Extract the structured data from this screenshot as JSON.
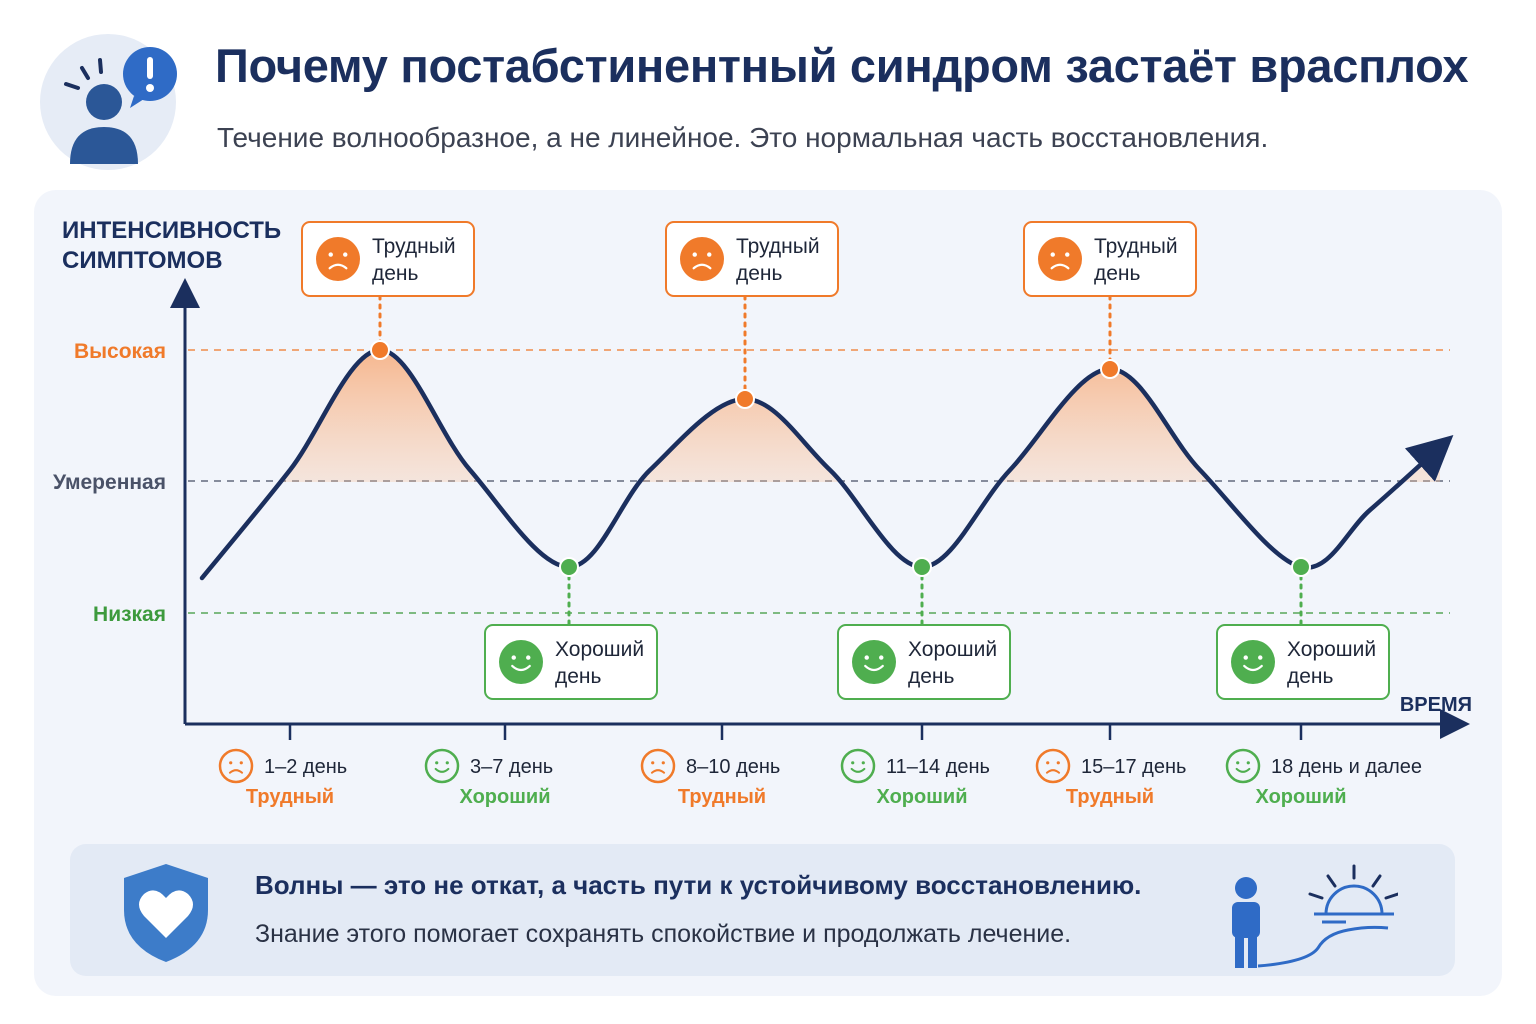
{
  "header": {
    "title": "Почему постабстинентный синдром застаёт врасплох",
    "subtitle": "Течение волнообразное, а не линейное. Это нормальная часть восстановления.",
    "icon": "person-alert-icon"
  },
  "chart_data": {
    "type": "line",
    "ylabel": [
      "ИНТЕНСИВНОСТЬ",
      "СИМПТОМОВ"
    ],
    "xlabel": "ВРЕМЯ",
    "levels": [
      {
        "label": "Высокая",
        "color": "#f07a2a"
      },
      {
        "label": "Умеренная",
        "color": "#4a5268"
      },
      {
        "label": "Низкая",
        "color": "#3d9a3d"
      }
    ],
    "phases": [
      {
        "range": "1–2 день",
        "state": "Трудный",
        "kind": "hard"
      },
      {
        "range": "3–7 день",
        "state": "Хороший",
        "kind": "good"
      },
      {
        "range": "8–10 день",
        "state": "Трудный",
        "kind": "hard"
      },
      {
        "range": "11–14 день",
        "state": "Хороший",
        "kind": "good"
      },
      {
        "range": "15–17 день",
        "state": "Трудный",
        "kind": "hard"
      },
      {
        "range": "18 день и далее",
        "state": "Хороший",
        "kind": "good"
      }
    ],
    "callouts": {
      "hard": [
        "Трудный",
        "день"
      ],
      "good": [
        "Хороший",
        "день"
      ]
    },
    "colors": {
      "hard": "#f07a2a",
      "good": "#4fae4f",
      "curve": "#1b2f5e",
      "axis": "#1b2f5e"
    },
    "grid": false,
    "legend": "none"
  },
  "footer": {
    "title": "Волны — это не откат, а часть пути к устойчивому восстановлению.",
    "text": "Знание этого помогает сохранять спокойствие и продолжать лечение.",
    "left_icon": "shield-heart-icon",
    "right_icon": "person-sunrise-path-icon"
  }
}
